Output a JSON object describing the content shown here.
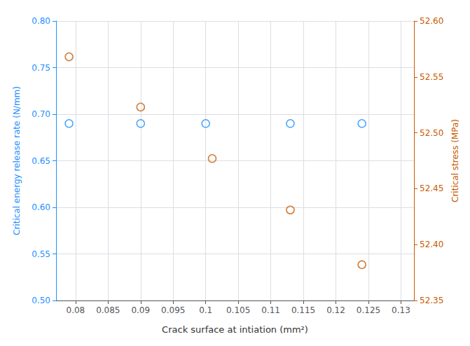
{
  "chart_data": {
    "type": "scatter",
    "xlabel": "Crack surface at intiation (mm²)",
    "ylabel": "Critical energy release rate (N/mm)",
    "y2label": "Critical stress (MPa)",
    "xlim": [
      0.077,
      0.132
    ],
    "xticks": [
      0.08,
      0.085,
      0.09,
      0.095,
      0.1,
      0.105,
      0.11,
      0.115,
      0.12,
      0.125,
      0.13
    ],
    "ylim": [
      0.5,
      0.8
    ],
    "yticks": [
      {
        "value": 0.5,
        "label": "0.50"
      },
      0.55,
      {
        "value": 0.6,
        "label": "0.60"
      },
      0.65,
      {
        "value": 0.7,
        "label": "0.70"
      },
      0.75,
      {
        "value": 0.8,
        "label": "0.80"
      }
    ],
    "y2lim": [
      52.35,
      52.6
    ],
    "y2ticks": [
      52.35,
      {
        "value": 52.4,
        "label": "52.40"
      },
      52.45,
      {
        "value": 52.5,
        "label": "52.50"
      },
      52.55,
      {
        "value": 52.6,
        "label": "52.60"
      }
    ],
    "grid": true,
    "series": [
      {
        "color": "#1E90FF",
        "marker": "circle",
        "x": [
          0.079,
          0.09,
          0.1,
          0.113,
          0.124
        ],
        "values": [
          0.69,
          0.69,
          0.69,
          0.69,
          0.69
        ]
      },
      {
        "color": "#C85A00",
        "marker": "circle",
        "axis": "y2",
        "x": [
          0.079,
          0.09,
          0.101,
          0.113,
          0.124
        ],
        "values": [
          52.568,
          52.523,
          52.477,
          52.431,
          52.382
        ]
      }
    ]
  }
}
